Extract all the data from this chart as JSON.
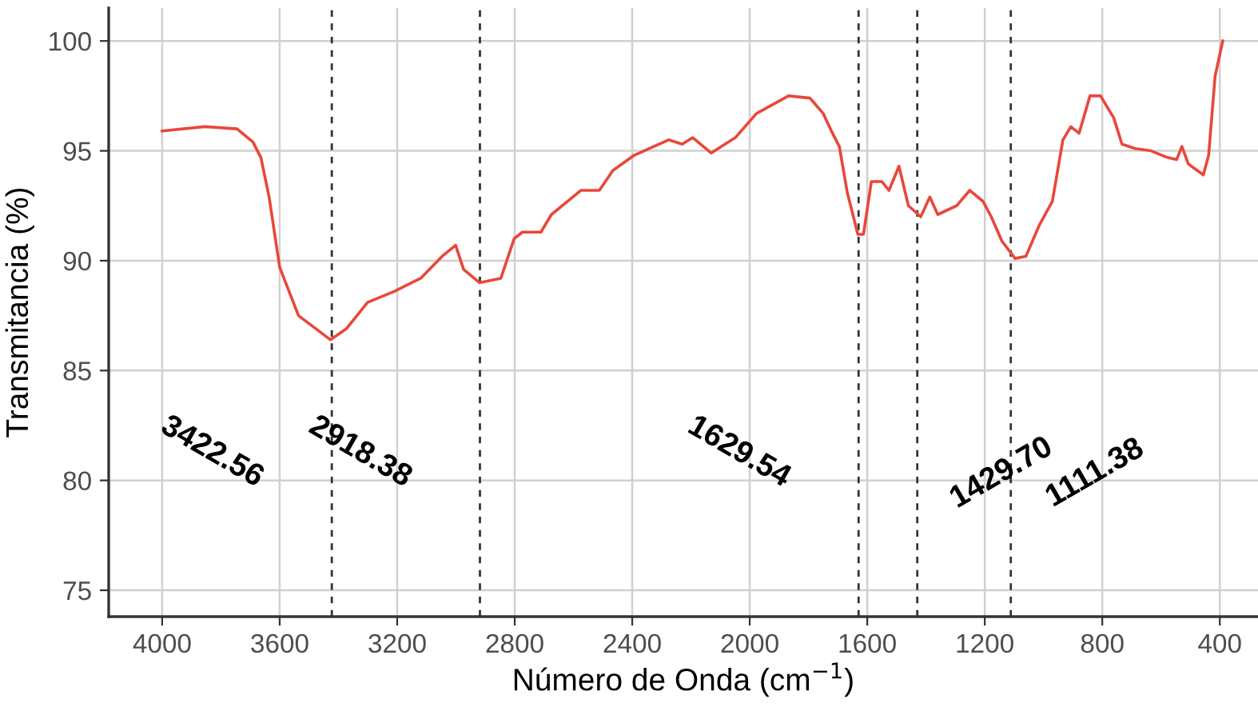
{
  "chart_data": {
    "type": "line",
    "xlabel": "Número de Onda (cm$^{−1}$)",
    "ylabel": "Transmitancia (%)",
    "x": [
      4000,
      3854,
      3745,
      3691,
      3664,
      3636,
      3600,
      3536,
      3427,
      3373,
      3301,
      3210,
      3120,
      3047,
      3001,
      2974,
      2920,
      2847,
      2802,
      2774,
      2711,
      2675,
      2575,
      2512,
      2466,
      2393,
      2276,
      2230,
      2194,
      2131,
      2049,
      1977,
      1868,
      1795,
      1750,
      1722,
      1695,
      1668,
      1632,
      1613,
      1586,
      1550,
      1526,
      1492,
      1460,
      1418,
      1387,
      1360,
      1296,
      1251,
      1206,
      1178,
      1142,
      1097,
      1060,
      1015,
      970,
      934,
      907,
      879,
      842,
      806,
      761,
      733,
      688,
      634,
      579,
      547,
      529,
      507,
      456,
      438,
      416,
      390
    ],
    "series": [
      {
        "color": "#e8483b",
        "values": [
          95.9,
          96.1,
          96.0,
          95.4,
          94.7,
          92.9,
          89.7,
          87.5,
          86.4,
          86.9,
          88.1,
          88.6,
          89.2,
          90.2,
          90.7,
          89.6,
          89.0,
          89.2,
          91.0,
          91.3,
          91.3,
          92.1,
          93.2,
          93.2,
          94.1,
          94.8,
          95.5,
          95.3,
          95.6,
          94.9,
          95.6,
          96.7,
          97.5,
          97.4,
          96.7,
          95.9,
          95.2,
          93.1,
          91.2,
          91.2,
          93.6,
          93.6,
          93.2,
          94.3,
          92.5,
          92.0,
          92.9,
          92.1,
          92.5,
          93.2,
          92.7,
          92.0,
          90.9,
          90.1,
          90.2,
          91.6,
          92.7,
          95.5,
          96.1,
          95.8,
          97.5,
          97.5,
          96.5,
          95.3,
          95.1,
          95.0,
          94.7,
          94.6,
          95.2,
          94.4,
          93.9,
          94.8,
          98.4,
          100.0
        ]
      }
    ],
    "xlim": [
      4182,
      270
    ],
    "ylim": [
      73.8,
      101.5
    ],
    "xticks": [
      4000,
      3600,
      3200,
      2800,
      2400,
      2000,
      1600,
      1200,
      800,
      400
    ],
    "yticks": [
      75,
      80,
      85,
      90,
      95,
      100
    ],
    "grid": true,
    "marker": "none",
    "line_style": "solid",
    "ref_lines": [
      {
        "axis": "x",
        "value": 3422.56,
        "label": "3422.56",
        "color": "#333333",
        "line_style": "dashed"
      },
      {
        "axis": "x",
        "value": 2918.38,
        "label": "2918.38",
        "color": "#333333",
        "line_style": "dashed"
      },
      {
        "axis": "x",
        "value": 1629.54,
        "label": "1629.54",
        "color": "#333333",
        "line_style": "dashed"
      },
      {
        "axis": "x",
        "value": 1429.7,
        "label": "1429.70",
        "color": "#333333",
        "line_style": "dashed"
      },
      {
        "axis": "x",
        "value": 1111.38,
        "label": "1111.38",
        "color": "#333333",
        "line_style": "dashed"
      }
    ]
  }
}
